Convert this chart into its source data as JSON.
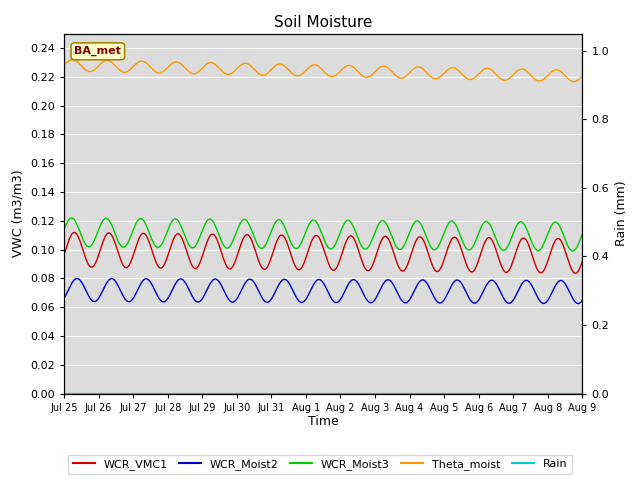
{
  "title": "Soil Moisture",
  "xlabel": "Time",
  "ylabel_left": "VWC (m3/m3)",
  "ylabel_right": "Rain (mm)",
  "annotation": "BA_met",
  "plot_bg_color": "#dcdcdc",
  "fig_bg_color": "#ffffff",
  "ylim_left": [
    0.0,
    0.25
  ],
  "ylim_right": [
    0.0,
    1.05
  ],
  "series": {
    "WCR_VMC1": {
      "color": "#cc0000",
      "base": 0.1,
      "amp": 0.012,
      "period": 1.0,
      "phase": -0.3,
      "trend": -0.0003
    },
    "WCR_Moist2": {
      "color": "#0000cc",
      "base": 0.072,
      "amp": 0.008,
      "period": 1.0,
      "phase": -0.8,
      "trend": -0.0001
    },
    "WCR_Moist3": {
      "color": "#00cc00",
      "base": 0.112,
      "amp": 0.01,
      "period": 1.0,
      "phase": 0.2,
      "trend": -0.0002
    },
    "Theta_moist": {
      "color": "#ff9900",
      "base": 0.228,
      "amp": 0.004,
      "period": 1.0,
      "phase": 0.0,
      "trend": -0.0005
    },
    "Rain": {
      "color": "#00cccc",
      "base": 0.0,
      "amp": 0.0,
      "period": 1.0,
      "phase": 0.0,
      "trend": 0.0
    }
  },
  "tick_labels": [
    "Jul 25",
    "Jul 26",
    "Jul 27",
    "Jul 28",
    "Jul 29",
    "Jul 30",
    "Jul 31",
    "Aug 1",
    "Aug 2",
    "Aug 3",
    "Aug 4",
    "Aug 5",
    "Aug 6",
    "Aug 7",
    "Aug 8",
    "Aug 9"
  ],
  "yticks_left": [
    0.0,
    0.02,
    0.04,
    0.06,
    0.08,
    0.1,
    0.12,
    0.14,
    0.16,
    0.18,
    0.2,
    0.22,
    0.24
  ],
  "yticks_right": [
    0.0,
    0.2,
    0.4,
    0.6,
    0.8,
    1.0
  ],
  "grid_color": "#ffffff",
  "total_days": 15
}
